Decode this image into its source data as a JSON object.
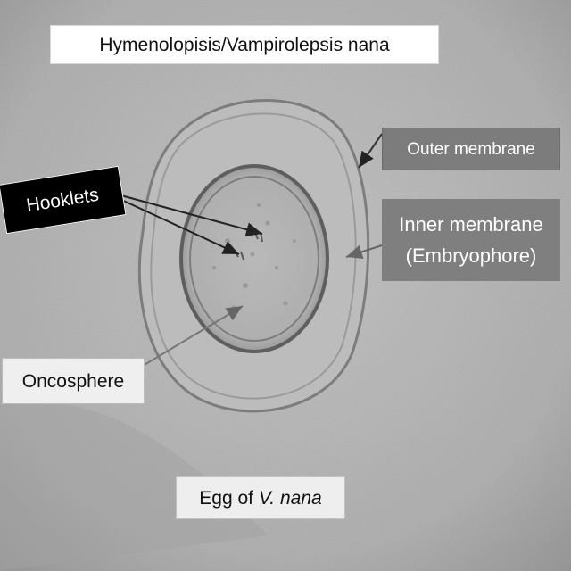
{
  "title": "Hymenolopisis/Vampirolepsis nana",
  "labels": {
    "outer_membrane": "Outer membrane",
    "inner_membrane_line1": "Inner membrane",
    "inner_membrane_line2": "(Embryophore)",
    "hooklets": "Hooklets",
    "oncosphere": "Oncosphere",
    "egg_prefix": "Egg of ",
    "egg_species": "V. nana"
  },
  "colors": {
    "background": "#b4b4b4",
    "label_dark": "#7c7c7c",
    "hooklets_bg": "#000000",
    "arrow": "#333333"
  }
}
